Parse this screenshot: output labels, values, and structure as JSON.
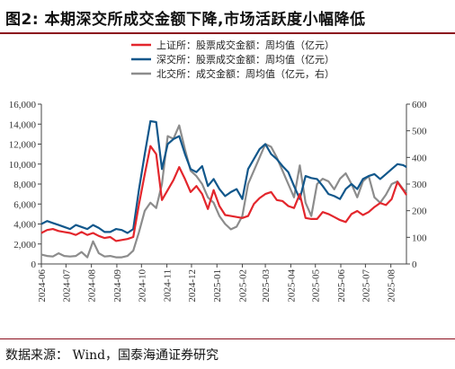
{
  "header": {
    "title": "图2:  本期深交所成交金额下降,市场活跃度小幅降低"
  },
  "footer": {
    "source": "数据来源：  Wind，国泰海通证券研究"
  },
  "chart_data": {
    "type": "line",
    "x_ticks": [
      "2024-06",
      "2024-07",
      "2024-08",
      "2024-09",
      "2024-10",
      "2024-11",
      "2024-12",
      "2025-01",
      "2025-02",
      "2025-03",
      "2025-04",
      "2025-05",
      "2025-06",
      "2025-07",
      "2025-08"
    ],
    "y_left": {
      "range": [
        0,
        16000
      ],
      "ticks": [
        "0",
        "2,000",
        "4,000",
        "6,000",
        "8,000",
        "10,000",
        "12,000",
        "14,000",
        "16,000"
      ]
    },
    "y_right": {
      "range": [
        0,
        600
      ],
      "ticks": [
        "0",
        "100",
        "200",
        "300",
        "400",
        "500",
        "600"
      ]
    },
    "x_range": [
      "2024-06-01",
      "2025-08-20"
    ],
    "legend_position": "top-center",
    "grid": false,
    "series": [
      {
        "name": "上证所：股票成交金额：周均值（亿元）",
        "color": "#e3262c",
        "axis": "left",
        "points": [
          [
            "2024-06-01",
            3100
          ],
          [
            "2024-06-08",
            3400
          ],
          [
            "2024-06-15",
            3500
          ],
          [
            "2024-06-22",
            3300
          ],
          [
            "2024-06-29",
            3200
          ],
          [
            "2024-07-06",
            3100
          ],
          [
            "2024-07-13",
            2900
          ],
          [
            "2024-07-20",
            3200
          ],
          [
            "2024-07-27",
            2900
          ],
          [
            "2024-08-03",
            3100
          ],
          [
            "2024-08-10",
            2800
          ],
          [
            "2024-08-17",
            2600
          ],
          [
            "2024-08-24",
            2700
          ],
          [
            "2024-08-31",
            2300
          ],
          [
            "2024-09-07",
            2400
          ],
          [
            "2024-09-14",
            2500
          ],
          [
            "2024-09-21",
            2700
          ],
          [
            "2024-09-28",
            6000
          ],
          [
            "2024-10-05",
            9000
          ],
          [
            "2024-10-12",
            11800
          ],
          [
            "2024-10-19",
            11000
          ],
          [
            "2024-10-26",
            6400
          ],
          [
            "2024-11-02",
            7400
          ],
          [
            "2024-11-09",
            8400
          ],
          [
            "2024-11-16",
            9700
          ],
          [
            "2024-11-23",
            8500
          ],
          [
            "2024-11-30",
            7200
          ],
          [
            "2024-12-07",
            7800
          ],
          [
            "2024-12-14",
            7000
          ],
          [
            "2024-12-21",
            5500
          ],
          [
            "2024-12-28",
            7400
          ],
          [
            "2025-01-04",
            5800
          ],
          [
            "2025-01-11",
            4900
          ],
          [
            "2025-01-18",
            4800
          ],
          [
            "2025-01-25",
            4700
          ],
          [
            "2025-02-01",
            4600
          ],
          [
            "2025-02-08",
            4800
          ],
          [
            "2025-02-15",
            6000
          ],
          [
            "2025-02-22",
            6600
          ],
          [
            "2025-03-01",
            7000
          ],
          [
            "2025-03-08",
            7200
          ],
          [
            "2025-03-15",
            6400
          ],
          [
            "2025-03-22",
            6300
          ],
          [
            "2025-03-29",
            5800
          ],
          [
            "2025-04-05",
            5600
          ],
          [
            "2025-04-12",
            7000
          ],
          [
            "2025-04-19",
            4600
          ],
          [
            "2025-04-26",
            4500
          ],
          [
            "2025-05-03",
            4500
          ],
          [
            "2025-05-10",
            5200
          ],
          [
            "2025-05-17",
            5000
          ],
          [
            "2025-05-24",
            4700
          ],
          [
            "2025-05-31",
            4400
          ],
          [
            "2025-06-07",
            4200
          ],
          [
            "2025-06-14",
            5000
          ],
          [
            "2025-06-21",
            5300
          ],
          [
            "2025-06-28",
            4900
          ],
          [
            "2025-07-05",
            5200
          ],
          [
            "2025-07-12",
            5700
          ],
          [
            "2025-07-19",
            6100
          ],
          [
            "2025-07-26",
            5900
          ],
          [
            "2025-08-02",
            6500
          ],
          [
            "2025-08-09",
            8200
          ],
          [
            "2025-08-16",
            7400
          ],
          [
            "2025-08-20",
            6900
          ]
        ]
      },
      {
        "name": "深交所：股票成交金额：周均值（亿元）",
        "color": "#11578b",
        "axis": "left",
        "points": [
          [
            "2024-06-01",
            4000
          ],
          [
            "2024-06-08",
            4300
          ],
          [
            "2024-06-15",
            4100
          ],
          [
            "2024-06-22",
            3900
          ],
          [
            "2024-06-29",
            3700
          ],
          [
            "2024-07-06",
            3500
          ],
          [
            "2024-07-13",
            3900
          ],
          [
            "2024-07-20",
            3700
          ],
          [
            "2024-07-27",
            3500
          ],
          [
            "2024-08-03",
            3900
          ],
          [
            "2024-08-10",
            3600
          ],
          [
            "2024-08-17",
            3200
          ],
          [
            "2024-08-24",
            3200
          ],
          [
            "2024-08-31",
            3500
          ],
          [
            "2024-09-07",
            3400
          ],
          [
            "2024-09-14",
            3100
          ],
          [
            "2024-09-21",
            3500
          ],
          [
            "2024-09-28",
            7500
          ],
          [
            "2024-10-05",
            11000
          ],
          [
            "2024-10-12",
            14300
          ],
          [
            "2024-10-19",
            14200
          ],
          [
            "2024-10-26",
            9500
          ],
          [
            "2024-11-02",
            12000
          ],
          [
            "2024-11-09",
            12500
          ],
          [
            "2024-11-16",
            12800
          ],
          [
            "2024-11-23",
            11000
          ],
          [
            "2024-11-30",
            9500
          ],
          [
            "2024-12-07",
            9200
          ],
          [
            "2024-12-14",
            9800
          ],
          [
            "2024-12-21",
            7800
          ],
          [
            "2024-12-28",
            8500
          ],
          [
            "2025-01-04",
            7500
          ],
          [
            "2025-01-11",
            6800
          ],
          [
            "2025-01-18",
            7200
          ],
          [
            "2025-01-25",
            7500
          ],
          [
            "2025-02-01",
            6500
          ],
          [
            "2025-02-08",
            9500
          ],
          [
            "2025-02-15",
            10500
          ],
          [
            "2025-02-22",
            11500
          ],
          [
            "2025-03-01",
            12000
          ],
          [
            "2025-03-08",
            11000
          ],
          [
            "2025-03-15",
            10500
          ],
          [
            "2025-03-22",
            9800
          ],
          [
            "2025-03-29",
            9200
          ],
          [
            "2025-04-05",
            7800
          ],
          [
            "2025-04-12",
            6500
          ],
          [
            "2025-04-19",
            8800
          ],
          [
            "2025-04-26",
            8600
          ],
          [
            "2025-05-03",
            8500
          ],
          [
            "2025-05-10",
            7800
          ],
          [
            "2025-05-17",
            7000
          ],
          [
            "2025-05-24",
            6800
          ],
          [
            "2025-05-31",
            6500
          ],
          [
            "2025-06-07",
            7500
          ],
          [
            "2025-06-14",
            8000
          ],
          [
            "2025-06-21",
            7500
          ],
          [
            "2025-06-28",
            8500
          ],
          [
            "2025-07-05",
            8800
          ],
          [
            "2025-07-12",
            9000
          ],
          [
            "2025-07-19",
            8500
          ],
          [
            "2025-07-26",
            9000
          ],
          [
            "2025-08-02",
            9500
          ],
          [
            "2025-08-09",
            10000
          ],
          [
            "2025-08-16",
            9900
          ],
          [
            "2025-08-20",
            9700
          ]
        ]
      },
      {
        "name": "北交所：成交金额：周均值（亿元，右）",
        "color": "#8c8c8c",
        "axis": "right",
        "points": [
          [
            "2024-06-01",
            35
          ],
          [
            "2024-06-08",
            30
          ],
          [
            "2024-06-15",
            28
          ],
          [
            "2024-06-22",
            40
          ],
          [
            "2024-06-29",
            30
          ],
          [
            "2024-07-06",
            28
          ],
          [
            "2024-07-13",
            30
          ],
          [
            "2024-07-20",
            45
          ],
          [
            "2024-07-27",
            25
          ],
          [
            "2024-08-03",
            85
          ],
          [
            "2024-08-10",
            40
          ],
          [
            "2024-08-17",
            28
          ],
          [
            "2024-08-24",
            30
          ],
          [
            "2024-08-31",
            25
          ],
          [
            "2024-09-07",
            25
          ],
          [
            "2024-09-14",
            30
          ],
          [
            "2024-09-21",
            50
          ],
          [
            "2024-09-28",
            120
          ],
          [
            "2024-10-05",
            200
          ],
          [
            "2024-10-12",
            230
          ],
          [
            "2024-10-19",
            210
          ],
          [
            "2024-10-26",
            300
          ],
          [
            "2024-11-02",
            480
          ],
          [
            "2024-11-09",
            470
          ],
          [
            "2024-11-16",
            520
          ],
          [
            "2024-11-23",
            430
          ],
          [
            "2024-11-30",
            350
          ],
          [
            "2024-12-07",
            330
          ],
          [
            "2024-12-14",
            300
          ],
          [
            "2024-12-21",
            250
          ],
          [
            "2024-12-28",
            230
          ],
          [
            "2025-01-04",
            180
          ],
          [
            "2025-01-11",
            150
          ],
          [
            "2025-01-18",
            130
          ],
          [
            "2025-01-25",
            140
          ],
          [
            "2025-02-01",
            180
          ],
          [
            "2025-02-08",
            300
          ],
          [
            "2025-02-15",
            350
          ],
          [
            "2025-02-22",
            400
          ],
          [
            "2025-03-01",
            450
          ],
          [
            "2025-03-08",
            440
          ],
          [
            "2025-03-15",
            400
          ],
          [
            "2025-03-22",
            350
          ],
          [
            "2025-03-29",
            300
          ],
          [
            "2025-04-05",
            250
          ],
          [
            "2025-04-12",
            370
          ],
          [
            "2025-04-19",
            230
          ],
          [
            "2025-04-26",
            180
          ],
          [
            "2025-05-03",
            300
          ],
          [
            "2025-05-10",
            320
          ],
          [
            "2025-05-17",
            310
          ],
          [
            "2025-05-24",
            280
          ],
          [
            "2025-05-31",
            320
          ],
          [
            "2025-06-07",
            340
          ],
          [
            "2025-06-14",
            300
          ],
          [
            "2025-06-21",
            250
          ],
          [
            "2025-06-28",
            310
          ],
          [
            "2025-07-05",
            330
          ],
          [
            "2025-07-12",
            250
          ],
          [
            "2025-07-19",
            230
          ],
          [
            "2025-07-26",
            260
          ],
          [
            "2025-08-02",
            300
          ],
          [
            "2025-08-09",
            310
          ],
          [
            "2025-08-16",
            280
          ],
          [
            "2025-08-20",
            270
          ]
        ]
      }
    ]
  }
}
